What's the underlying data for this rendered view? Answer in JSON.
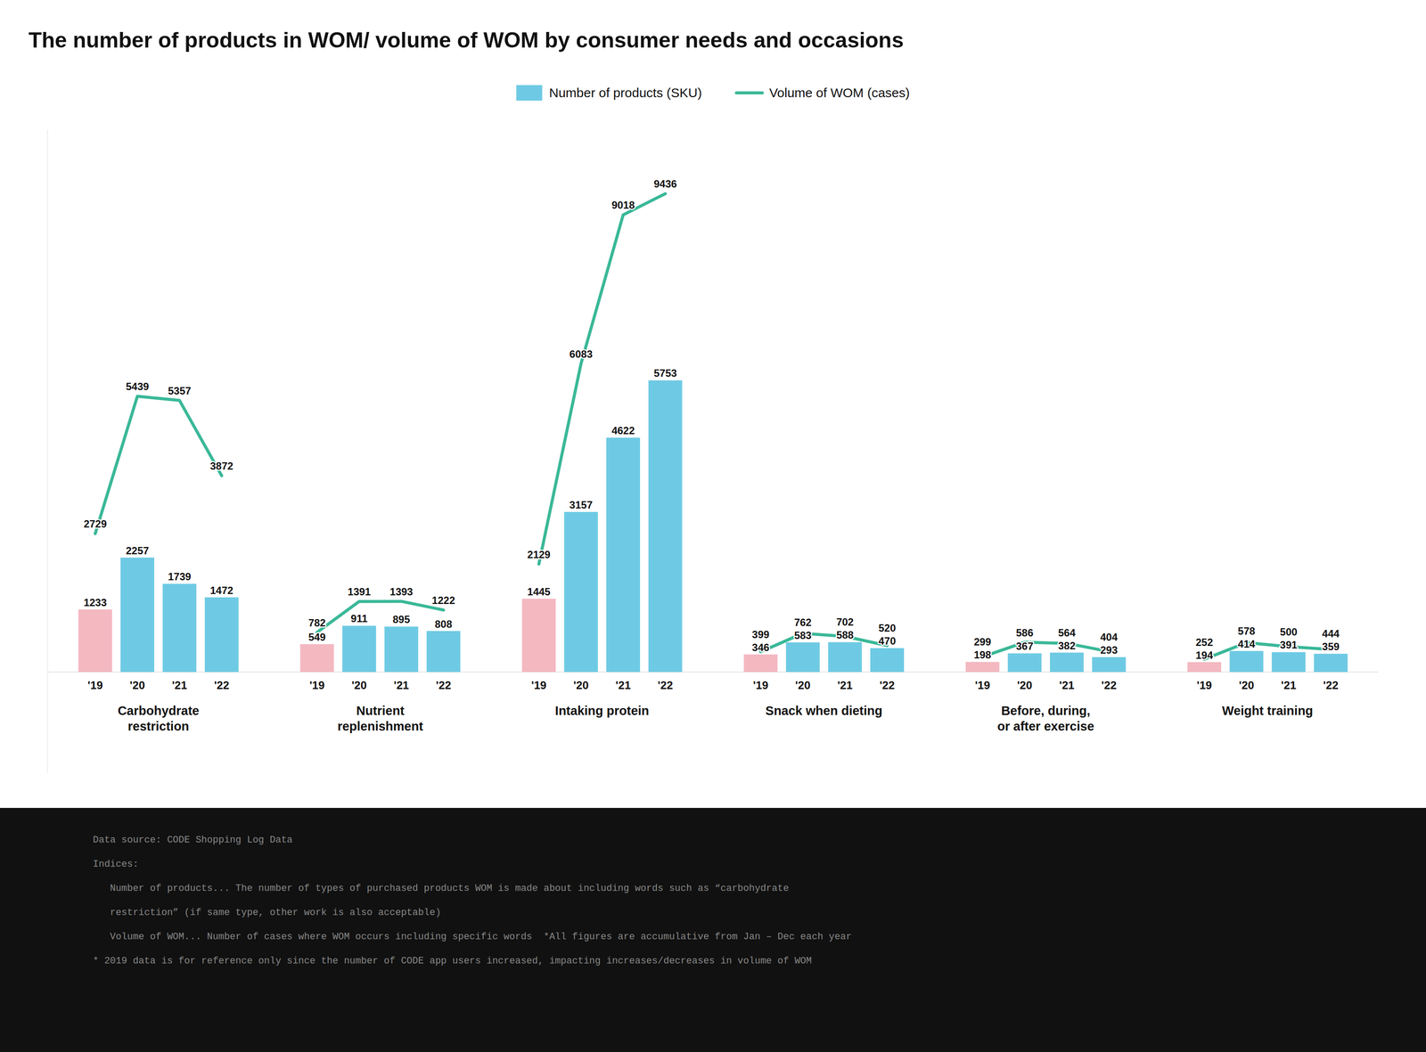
{
  "chart_data": {
    "type": "bar",
    "title": "The number of products in WOM/ volume of WOM by consumer needs and occasions",
    "categories": [
      "Carbohydrate\nrestriction",
      "Nutrient\nreplenishment",
      "Intaking protein",
      "Snack when dieting",
      "Before, during,\nor after exercise",
      "Weight training"
    ],
    "subcategories": [
      "'19",
      "'20",
      "'21",
      "'22"
    ],
    "series": [
      {
        "name": "Number of products (SKU)",
        "type": "bar",
        "color": "#6ecae4",
        "colors": [
          [
            "#f4b8c1",
            "#6ecae4",
            "#6ecae4",
            "#6ecae4"
          ],
          [
            "#f4b8c1",
            "#6ecae4",
            "#6ecae4",
            "#6ecae4"
          ],
          [
            "#f4b8c1",
            "#6ecae4",
            "#6ecae4",
            "#6ecae4"
          ],
          [
            "#f4b8c1",
            "#6ecae4",
            "#6ecae4",
            "#6ecae4"
          ],
          [
            "#f4b8c1",
            "#6ecae4",
            "#6ecae4",
            "#6ecae4"
          ],
          [
            "#f4b8c1",
            "#6ecae4",
            "#6ecae4",
            "#6ecae4"
          ]
        ],
        "values": [
          [
            1233,
            2257,
            1739,
            1472
          ],
          [
            549,
            911,
            895,
            808
          ],
          [
            1445,
            3157,
            4622,
            5753
          ],
          [
            346,
            583,
            588,
            470
          ],
          [
            198,
            367,
            382,
            293
          ],
          [
            194,
            414,
            391,
            359
          ]
        ]
      },
      {
        "name": "Volume of WOM (cases)",
        "type": "line",
        "color": "#3ab898",
        "values": [
          [
            2729,
            5439,
            5357,
            3872
          ],
          [
            782,
            1391,
            1393,
            1222
          ],
          [
            2129,
            6083,
            9018,
            9436
          ],
          [
            399,
            762,
            702,
            520
          ],
          [
            299,
            586,
            564,
            404
          ],
          [
            252,
            578,
            500,
            444
          ]
        ]
      }
    ],
    "ylim": [
      -2000,
      10700
    ],
    "tick_labels": false,
    "grid": false,
    "legend": "top",
    "data_labels": true,
    "notes": [
      "Data source: CODE Shopping Log Data",
      "Indices:",
      "   Number of products... The number of types of purchased products WOM is made about including words such as “carbohydrate",
      "   restriction” (if same type, other work is also acceptable)",
      "   Volume of WOM... Number of cases where WOM occurs including specific words  *All figures are accumulative from Jan – Dec each year",
      "* 2019 data is for reference only since the number of CODE app users increased, impacting increases/decreases in volume of WOM"
    ]
  }
}
